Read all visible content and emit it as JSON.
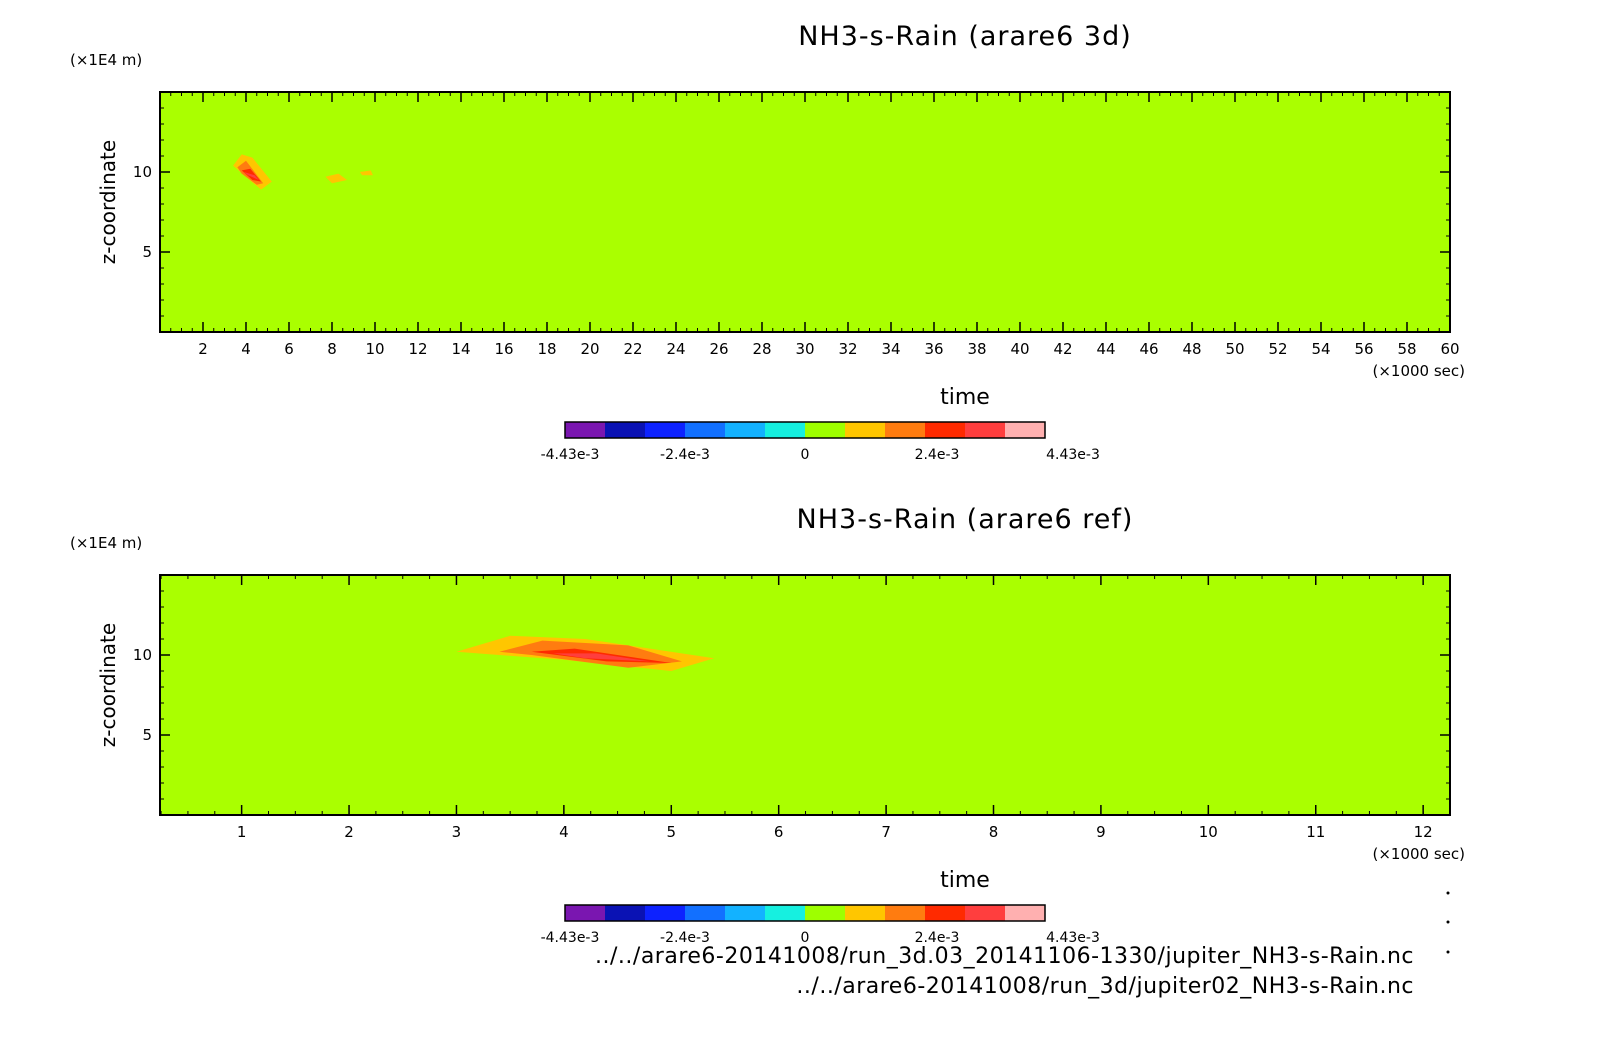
{
  "colorbar": {
    "colors": [
      "#7a16b0",
      "#0a12b4",
      "#0d22ff",
      "#1270ff",
      "#13b2ff",
      "#16f0e0",
      "#9eff00",
      "#ffc600",
      "#ff7c10",
      "#ff2a00",
      "#ff3e3e",
      "#ffb0b0"
    ],
    "tick_labels": [
      "-4.43e-3",
      "-2.4e-3",
      "0",
      "2.4e-3",
      "4.43e-3"
    ]
  },
  "chart_data": [
    {
      "type": "heatmap",
      "title": "NH3-s-Rain (arare6 3d)",
      "xlabel": "time",
      "ylabel": "z-coordinate",
      "x_unit": "(×1000 sec)",
      "y_unit": "(×1E4 m)",
      "xlim": [
        0,
        60
      ],
      "ylim": [
        0,
        15
      ],
      "x_ticks": [
        2,
        4,
        6,
        8,
        10,
        12,
        14,
        16,
        18,
        20,
        22,
        24,
        26,
        28,
        30,
        32,
        34,
        36,
        38,
        40,
        42,
        44,
        46,
        48,
        50,
        52,
        54,
        56,
        58,
        60
      ],
      "x_tick_labels": [
        "2",
        "4",
        "6",
        "8",
        "10",
        "12",
        "14",
        "16",
        "18",
        "20",
        "22",
        "24",
        "26",
        "28",
        "30",
        "32",
        "34",
        "36",
        "38",
        "40",
        "42",
        "44",
        "46",
        "48",
        "50",
        "52",
        "54",
        "56",
        "58",
        "60"
      ],
      "y_ticks": [
        5,
        10
      ],
      "y_tick_labels": [
        "5",
        "10"
      ],
      "background_value": 0,
      "background_color": "#aaff00",
      "blobs": [
        {
          "x": [
            3.4,
            3.8,
            4.3,
            5.2,
            4.7,
            3.9,
            3.4
          ],
          "y": [
            10.4,
            11.1,
            10.9,
            9.4,
            8.9,
            9.8,
            10.4
          ],
          "value": 0.0014,
          "color": "#ffc600"
        },
        {
          "x": [
            3.6,
            4.0,
            4.8,
            4.5,
            3.8
          ],
          "y": [
            10.3,
            10.7,
            9.3,
            9.2,
            9.9
          ],
          "value": 0.0021,
          "color": "#ff7c10"
        },
        {
          "x": [
            3.8,
            4.2,
            4.7,
            4.3
          ],
          "y": [
            10.1,
            10.2,
            9.4,
            9.5
          ],
          "value": 0.0028,
          "color": "#ff2a00"
        },
        {
          "x": [
            3.9,
            4.4,
            4.6,
            4.1
          ],
          "y": [
            10.0,
            9.8,
            9.5,
            9.8
          ],
          "value": 0.0035,
          "color": "#ff3e3e"
        },
        {
          "x": [
            7.7,
            8.3,
            8.7,
            8.0,
            7.7
          ],
          "y": [
            9.7,
            9.9,
            9.5,
            9.3,
            9.7
          ],
          "value": 0.0012,
          "color": "#ffc600"
        },
        {
          "x": [
            9.3,
            9.8,
            9.9,
            9.4
          ],
          "y": [
            10.0,
            10.1,
            9.8,
            9.8
          ],
          "value": 0.0012,
          "color": "#ffc600"
        }
      ]
    },
    {
      "type": "heatmap",
      "title": "NH3-s-Rain (arare6 ref)",
      "xlabel": "time",
      "ylabel": "z-coordinate",
      "x_unit": "(×1000 sec)",
      "y_unit": "(×1E4 m)",
      "xlim": [
        0.24,
        12.25
      ],
      "ylim": [
        0,
        15
      ],
      "x_ticks": [
        1,
        2,
        3,
        4,
        5,
        6,
        7,
        8,
        9,
        10,
        11,
        12
      ],
      "x_tick_labels": [
        "1",
        "2",
        "3",
        "4",
        "5",
        "6",
        "7",
        "8",
        "9",
        "10",
        "11",
        "12"
      ],
      "y_ticks": [
        5,
        10
      ],
      "y_tick_labels": [
        "5",
        "10"
      ],
      "background_value": 0,
      "background_color": "#aaff00",
      "blobs": [
        {
          "x": [
            3.0,
            3.5,
            4.2,
            5.4,
            5.0,
            4.0,
            3.0
          ],
          "y": [
            10.2,
            11.2,
            11.0,
            9.8,
            9.0,
            9.7,
            10.2
          ],
          "value": 0.0012,
          "color": "#ffc600"
        },
        {
          "x": [
            3.4,
            3.8,
            4.6,
            5.1,
            4.6,
            3.7
          ],
          "y": [
            10.2,
            10.9,
            10.6,
            9.6,
            9.2,
            10.0
          ],
          "value": 0.0021,
          "color": "#ff7c10"
        },
        {
          "x": [
            3.7,
            4.1,
            5.0,
            4.4,
            3.7
          ],
          "y": [
            10.2,
            10.4,
            9.5,
            9.6,
            10.2
          ],
          "value": 0.0028,
          "color": "#ff2a00"
        },
        {
          "x": [
            3.9,
            4.3,
            4.8,
            4.2
          ],
          "y": [
            10.1,
            10.1,
            9.6,
            9.8
          ],
          "value": 0.0035,
          "color": "#ff3e3e"
        }
      ]
    }
  ],
  "file_paths": [
    "../../arare6-20141008/run_3d.03_20141106-1330/jupiter_NH3-s-Rain.nc",
    "../../arare6-20141008/run_3d/jupiter02_NH3-s-Rain.nc"
  ]
}
